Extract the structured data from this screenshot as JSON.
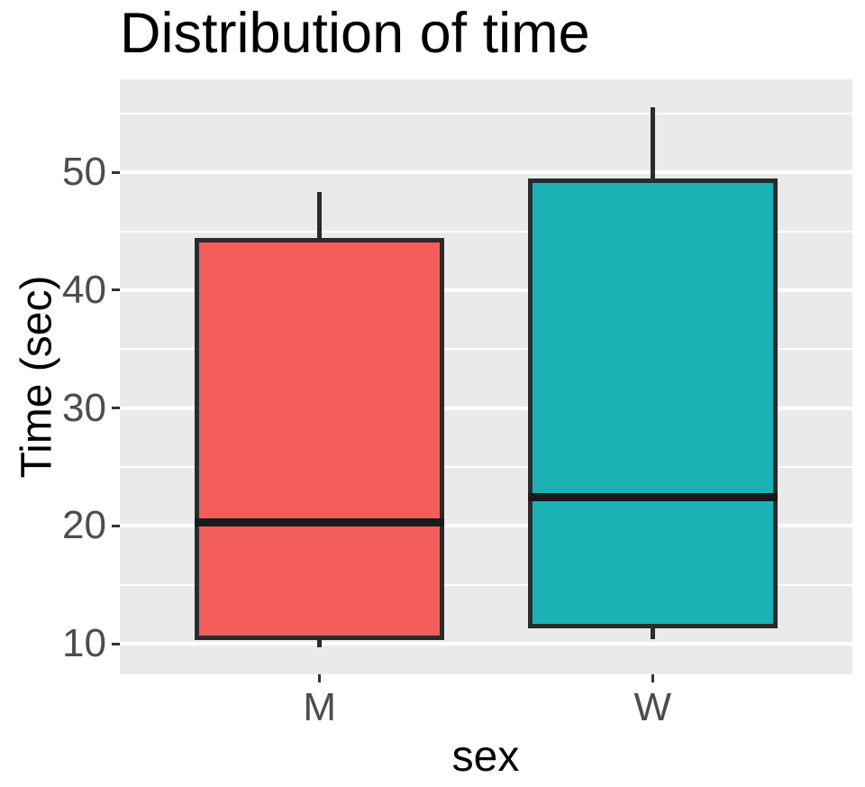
{
  "title": "Distribution of time",
  "chart_data": {
    "type": "boxplot",
    "title": "Distribution of time",
    "xlabel": "sex",
    "ylabel": "Time (sec)",
    "categories": [
      "M",
      "W"
    ],
    "series": [
      {
        "name": "M",
        "fill": "#F35E5A",
        "min": 9.7,
        "q1": 10.3,
        "median": 20.3,
        "q3": 44.4,
        "max": 48.3
      },
      {
        "name": "W",
        "fill": "#1AB2B4",
        "min": 10.4,
        "q1": 11.3,
        "median": 22.4,
        "q3": 49.5,
        "max": 55.5
      }
    ],
    "y_major_ticks": [
      10,
      20,
      30,
      40,
      50
    ],
    "y_minor_ticks": [
      15,
      25,
      35,
      45,
      55
    ],
    "ylim": [
      7.4,
      57.9
    ],
    "grid": "on",
    "legend_position": "none",
    "colors": {
      "panel_bg": "#EAEAEA",
      "grid": "#FFFFFF",
      "box_border": "#2B2B2B",
      "median_line": "#1A1A1A",
      "tick_text": "#4D4D4D",
      "axis_text": "#000000",
      "tick_mark": "#333333",
      "plot_bg": "#FFFFFF"
    }
  }
}
